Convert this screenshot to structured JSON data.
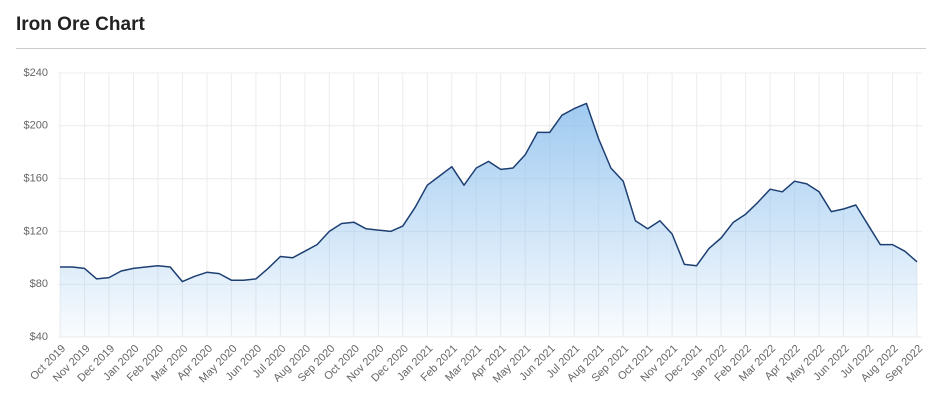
{
  "chart_data": {
    "type": "line",
    "title": "Iron Ore Chart",
    "categories": [
      "Oct 2019",
      null,
      "Nov 2019",
      null,
      "Dec 2019",
      null,
      "Jan 2020",
      null,
      "Feb 2020",
      null,
      "Mar 2020",
      null,
      "Apr 2020",
      null,
      "May 2020",
      null,
      "Jun 2020",
      null,
      "Jul 2020",
      null,
      "Aug 2020",
      null,
      "Sep 2020",
      null,
      "Oct 2020",
      null,
      "Nov 2020",
      null,
      "Dec 2020",
      null,
      "Jan 2021",
      null,
      "Feb 2021",
      null,
      "Mar 2021",
      null,
      "Apr 2021",
      null,
      "May 2021",
      null,
      "Jun 2021",
      null,
      "Jul 2021",
      null,
      "Aug 2021",
      null,
      "Sep 2021",
      null,
      "Oct 2021",
      null,
      "Nov 2021",
      null,
      "Dec 2021",
      null,
      "Jan 2022",
      null,
      "Feb 2022",
      null,
      "Mar 2022",
      null,
      "Apr 2022",
      null,
      "May 2022",
      null,
      "Jun 2022",
      null,
      "Jul 2022",
      null,
      "Aug 2022",
      null,
      "Sep 2022"
    ],
    "values": [
      93,
      93,
      92,
      84,
      85,
      90,
      92,
      93,
      94,
      93,
      82,
      86,
      89,
      88,
      83,
      83,
      84,
      92,
      101,
      100,
      105,
      110,
      120,
      126,
      127,
      122,
      121,
      120,
      124,
      138,
      155,
      162,
      169,
      155,
      168,
      173,
      167,
      168,
      178,
      195,
      195,
      208,
      213,
      217,
      190,
      168,
      158,
      128,
      122,
      128,
      118,
      95,
      94,
      107,
      115,
      127,
      133,
      142,
      152,
      150,
      158,
      156,
      150,
      135,
      137,
      140,
      125,
      110,
      110,
      105,
      97
    ],
    "color": "#1d3f72",
    "fill_color": "#8fc1ee",
    "ylim": [
      40,
      240
    ],
    "yticks": [
      {
        "value": 40,
        "label": "$40"
      },
      {
        "value": 80,
        "label": "$80"
      },
      {
        "value": 120,
        "label": "$120"
      },
      {
        "value": 160,
        "label": "$160"
      },
      {
        "value": 200,
        "label": "$200"
      },
      {
        "value": 240,
        "label": "$240"
      }
    ],
    "grid": true
  }
}
